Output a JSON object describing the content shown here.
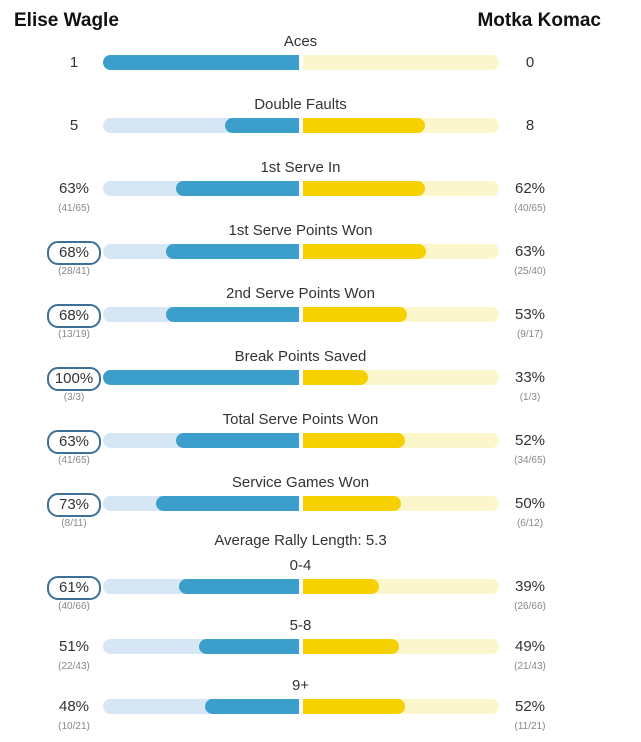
{
  "players": {
    "left": "Elise Wagle",
    "right": "Motka Komac"
  },
  "rally_header": "Average Rally Length: 5.3",
  "colors": {
    "left_fill": "#3c9fcb",
    "left_track": "#d7e6f4",
    "right_fill": "#f7d000",
    "right_track": "#fcf6cc",
    "winner_outline": "#3e6f97"
  },
  "stats": [
    {
      "label": "Aces",
      "left": "1",
      "right": "0",
      "left_frac": "",
      "right_frac": "",
      "left_share": 1.0,
      "right_share": 0.0,
      "winner": ""
    },
    {
      "label": "Double Faults",
      "left": "5",
      "right": "8",
      "left_frac": "",
      "right_frac": "",
      "left_share": 0.38,
      "right_share": 0.62,
      "winner": ""
    },
    {
      "label": "1st Serve In",
      "left": "63%",
      "right": "62%",
      "left_frac": "(41/65)",
      "right_frac": "(40/65)",
      "left_share": 0.63,
      "right_share": 0.62,
      "winner": ""
    },
    {
      "label": "1st Serve Points Won",
      "left": "68%",
      "right": "63%",
      "left_frac": "(28/41)",
      "right_frac": "(25/40)",
      "left_share": 0.68,
      "right_share": 0.63,
      "winner": "left"
    },
    {
      "label": "2nd Serve Points Won",
      "left": "68%",
      "right": "53%",
      "left_frac": "(13/19)",
      "right_frac": "(9/17)",
      "left_share": 0.68,
      "right_share": 0.53,
      "winner": "left"
    },
    {
      "label": "Break Points Saved",
      "left": "100%",
      "right": "33%",
      "left_frac": "(3/3)",
      "right_frac": "(1/3)",
      "left_share": 1.0,
      "right_share": 0.33,
      "winner": "left"
    },
    {
      "label": "Total Serve Points Won",
      "left": "63%",
      "right": "52%",
      "left_frac": "(41/65)",
      "right_frac": "(34/65)",
      "left_share": 0.63,
      "right_share": 0.52,
      "winner": "left"
    },
    {
      "label": "Service Games Won",
      "left": "73%",
      "right": "50%",
      "left_frac": "(8/11)",
      "right_frac": "(6/12)",
      "left_share": 0.73,
      "right_share": 0.5,
      "winner": "left"
    },
    {
      "label": "0-4",
      "left": "61%",
      "right": "39%",
      "left_frac": "(40/66)",
      "right_frac": "(26/66)",
      "left_share": 0.61,
      "right_share": 0.39,
      "winner": "left"
    },
    {
      "label": "5-8",
      "left": "51%",
      "right": "49%",
      "left_frac": "(22/43)",
      "right_frac": "(21/43)",
      "left_share": 0.51,
      "right_share": 0.49,
      "winner": ""
    },
    {
      "label": "9+",
      "left": "48%",
      "right": "52%",
      "left_frac": "(10/21)",
      "right_frac": "(11/21)",
      "left_share": 0.48,
      "right_share": 0.52,
      "winner": ""
    }
  ]
}
